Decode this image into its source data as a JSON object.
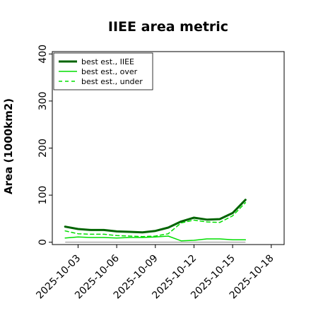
{
  "chart_data": {
    "type": "line",
    "title": "IIEE area metric",
    "xlabel": "",
    "ylabel": "Area (1000km2)",
    "x": [
      "2025-10-02",
      "2025-10-03",
      "2025-10-04",
      "2025-10-05",
      "2025-10-06",
      "2025-10-07",
      "2025-10-08",
      "2025-10-09",
      "2025-10-10",
      "2025-10-11",
      "2025-10-12",
      "2025-10-13",
      "2025-10-14",
      "2025-10-15",
      "2025-10-16"
    ],
    "xticks": [
      "2025-10-03",
      "2025-10-06",
      "2025-10-09",
      "2025-10-12",
      "2025-10-15",
      "2025-10-18"
    ],
    "xlim": [
      "2025-10-01",
      "2025-10-19"
    ],
    "yticks": [
      0,
      100,
      200,
      300,
      400
    ],
    "ylim": [
      -5,
      405
    ],
    "grid": false,
    "legend": "top-left",
    "baseline": 0,
    "series": [
      {
        "name": "best est., IIEE",
        "color": "#006400",
        "style": "solid",
        "width": 3,
        "values": [
          33,
          28,
          26,
          26,
          23,
          22,
          21,
          24,
          31,
          44,
          52,
          48,
          49,
          62,
          90
        ]
      },
      {
        "name": "best est., over",
        "color": "#00dd00",
        "style": "solid",
        "width": 1.5,
        "values": [
          9,
          11,
          10,
          10,
          9,
          10,
          10,
          11,
          13,
          3,
          4,
          7,
          7,
          5,
          5
        ]
      },
      {
        "name": "best est., under",
        "color": "#00dd00",
        "style": "dashed",
        "width": 1.5,
        "values": [
          24,
          18,
          17,
          17,
          14,
          13,
          12,
          13,
          18,
          41,
          47,
          43,
          42,
          56,
          84
        ]
      }
    ]
  }
}
